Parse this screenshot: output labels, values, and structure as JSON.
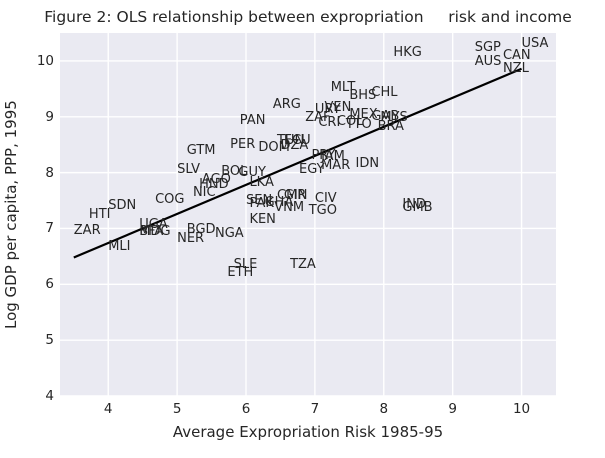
{
  "figure": {
    "bg": "#ffffff"
  },
  "chart_data": {
    "type": "scatter",
    "title": "Figure 2: OLS relationship between expropriation     risk and income",
    "xlabel": "Average Expropriation Risk 1985-95",
    "ylabel": "Log GDP per capita, PPP, 1995",
    "xlim": [
      3.3,
      10.5
    ],
    "ylim": [
      4,
      10.5
    ],
    "xticks": [
      4,
      5,
      6,
      7,
      8,
      9,
      10
    ],
    "yticks": [
      4,
      5,
      6,
      7,
      8,
      9,
      10
    ],
    "grid": true,
    "legend": null,
    "marker_style": "country-code-text-labels",
    "colors": {
      "plot_bg": "#eaeaf2",
      "grid": "#ffffff",
      "text": "#262626",
      "regression_line": "#000000"
    },
    "regression": {
      "slope": 0.52,
      "intercept": 4.66,
      "x_start": 3.5,
      "x_end": 10.0
    },
    "points": [
      {
        "label": "ZAR",
        "x": 3.5,
        "y": 6.87
      },
      {
        "label": "HTI",
        "x": 3.72,
        "y": 7.15
      },
      {
        "label": "MLI",
        "x": 4.0,
        "y": 6.57
      },
      {
        "label": "SDN",
        "x": 4.0,
        "y": 7.31
      },
      {
        "label": "UGA",
        "x": 4.45,
        "y": 6.97
      },
      {
        "label": "BFA",
        "x": 4.45,
        "y": 6.85
      },
      {
        "label": "MDG",
        "x": 4.45,
        "y": 6.84
      },
      {
        "label": "COG",
        "x": 4.68,
        "y": 7.42
      },
      {
        "label": "NER",
        "x": 5.0,
        "y": 6.73
      },
      {
        "label": "SLV",
        "x": 5.0,
        "y": 7.95
      },
      {
        "label": "BGD",
        "x": 5.14,
        "y": 6.88
      },
      {
        "label": "GTM",
        "x": 5.14,
        "y": 8.29
      },
      {
        "label": "NIC",
        "x": 5.23,
        "y": 7.54
      },
      {
        "label": "HND",
        "x": 5.32,
        "y": 7.69
      },
      {
        "label": "AGO",
        "x": 5.36,
        "y": 7.77
      },
      {
        "label": "NGA",
        "x": 5.55,
        "y": 6.81
      },
      {
        "label": "BOL",
        "x": 5.64,
        "y": 7.93
      },
      {
        "label": "ETH",
        "x": 5.73,
        "y": 6.11
      },
      {
        "label": "PER",
        "x": 5.77,
        "y": 8.4
      },
      {
        "label": "SLE",
        "x": 5.82,
        "y": 6.25
      },
      {
        "label": "GUY",
        "x": 5.89,
        "y": 7.9
      },
      {
        "label": "PAN",
        "x": 5.91,
        "y": 8.84
      },
      {
        "label": "SEN",
        "x": 6.0,
        "y": 7.4
      },
      {
        "label": "KEN",
        "x": 6.05,
        "y": 7.06
      },
      {
        "label": "PAK",
        "x": 6.05,
        "y": 7.35
      },
      {
        "label": "LKA",
        "x": 6.05,
        "y": 7.73
      },
      {
        "label": "DOM",
        "x": 6.18,
        "y": 8.36
      },
      {
        "label": "GHA",
        "x": 6.27,
        "y": 7.37
      },
      {
        "label": "ARG",
        "x": 6.39,
        "y": 9.13
      },
      {
        "label": "VNM",
        "x": 6.41,
        "y": 7.28
      },
      {
        "label": "CMR",
        "x": 6.45,
        "y": 7.5
      },
      {
        "label": "TUN",
        "x": 6.45,
        "y": 8.48
      },
      {
        "label": "DZA",
        "x": 6.5,
        "y": 8.39
      },
      {
        "label": "GIN",
        "x": 6.55,
        "y": 7.49
      },
      {
        "label": "ECU",
        "x": 6.55,
        "y": 8.47
      },
      {
        "label": "TZA",
        "x": 6.64,
        "y": 6.25
      },
      {
        "label": "EGY",
        "x": 6.77,
        "y": 7.95
      },
      {
        "label": "ZAF",
        "x": 6.86,
        "y": 8.89
      },
      {
        "label": "TGO",
        "x": 6.91,
        "y": 7.22
      },
      {
        "label": "PRY",
        "x": 6.95,
        "y": 8.21
      },
      {
        "label": "CIV",
        "x": 7.0,
        "y": 7.44
      },
      {
        "label": "URY",
        "x": 7.0,
        "y": 9.03
      },
      {
        "label": "CRI",
        "x": 7.05,
        "y": 8.79
      },
      {
        "label": "JAM",
        "x": 7.09,
        "y": 8.19
      },
      {
        "label": "MAR",
        "x": 7.09,
        "y": 8.03
      },
      {
        "label": "VEN",
        "x": 7.14,
        "y": 9.07
      },
      {
        "label": "MLT",
        "x": 7.23,
        "y": 9.43
      },
      {
        "label": "COL",
        "x": 7.32,
        "y": 8.81
      },
      {
        "label": "TTO",
        "x": 7.45,
        "y": 8.77
      },
      {
        "label": "BHS",
        "x": 7.5,
        "y": 9.29
      },
      {
        "label": "MEX",
        "x": 7.5,
        "y": 8.94
      },
      {
        "label": "IDN",
        "x": 7.59,
        "y": 8.07
      },
      {
        "label": "CHL",
        "x": 7.82,
        "y": 9.34
      },
      {
        "label": "GAB",
        "x": 7.82,
        "y": 8.9
      },
      {
        "label": "BRA",
        "x": 7.91,
        "y": 8.73
      },
      {
        "label": "MYS",
        "x": 7.95,
        "y": 8.89
      },
      {
        "label": "HKG",
        "x": 8.14,
        "y": 10.05
      },
      {
        "label": "IND",
        "x": 8.27,
        "y": 7.33
      },
      {
        "label": "GMB",
        "x": 8.27,
        "y": 7.27
      },
      {
        "label": "AUS",
        "x": 9.32,
        "y": 9.9
      },
      {
        "label": "SGP",
        "x": 9.32,
        "y": 10.15
      },
      {
        "label": "CAN",
        "x": 9.73,
        "y": 9.99
      },
      {
        "label": "NZL",
        "x": 9.73,
        "y": 9.76
      },
      {
        "label": "USA",
        "x": 10.0,
        "y": 10.22
      }
    ]
  }
}
